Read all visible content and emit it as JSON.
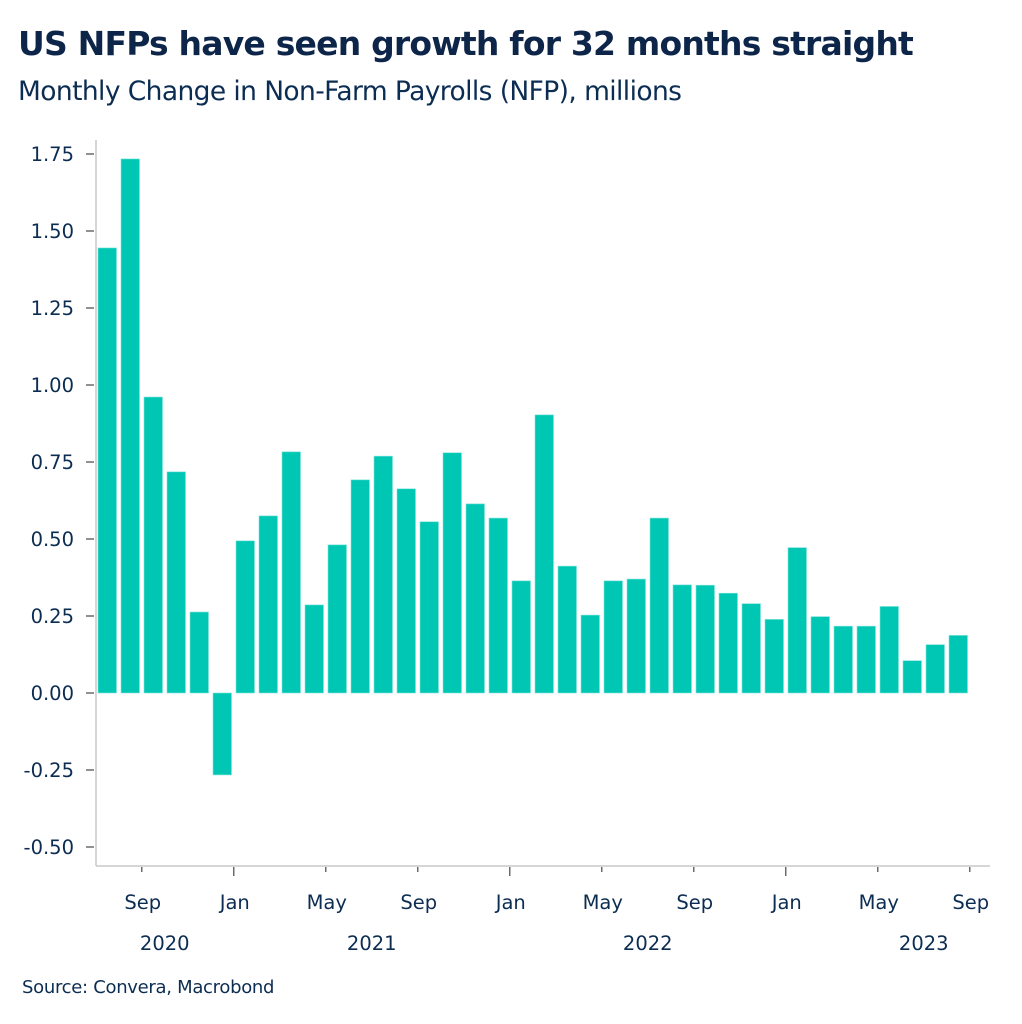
{
  "header": {
    "title": "US NFPs have seen growth for 32 months straight",
    "subtitle": "Monthly Change in Non-Farm Payrolls (NFP), millions"
  },
  "footer": {
    "source": "Source: Convera, Macrobond"
  },
  "colors": {
    "bar": "#00c7b4",
    "text": "#0c2d52",
    "axis": "#c8c8c8",
    "tick": "#6b6b6b"
  },
  "chart_data": {
    "type": "bar",
    "title": "US NFPs have seen growth for 32 months straight",
    "subtitle": "Monthly Change in Non-Farm Payrolls (NFP), millions",
    "xlabel": "",
    "ylabel": "",
    "ylim": [
      -0.55,
      1.8
    ],
    "yticks": [
      -0.5,
      -0.25,
      0.0,
      0.25,
      0.5,
      0.75,
      1.0,
      1.25,
      1.5,
      1.75
    ],
    "ytick_labels": [
      "-0.50",
      "-0.25",
      "0.00",
      "0.25",
      "0.50",
      "0.75",
      "1.00",
      "1.25",
      "1.50",
      "1.75"
    ],
    "grid": false,
    "legend": "none",
    "categories": [
      "Jul 2020",
      "Aug 2020",
      "Sep 2020",
      "Oct 2020",
      "Nov 2020",
      "Dec 2020",
      "Jan 2021",
      "Feb 2021",
      "Mar 2021",
      "Apr 2021",
      "May 2021",
      "Jun 2021",
      "Jul 2021",
      "Aug 2021",
      "Sep 2021",
      "Oct 2021",
      "Nov 2021",
      "Dec 2021",
      "Jan 2022",
      "Feb 2022",
      "Mar 2022",
      "Apr 2022",
      "May 2022",
      "Jun 2022",
      "Jul 2022",
      "Aug 2022",
      "Sep 2022",
      "Oct 2022",
      "Nov 2022",
      "Dec 2022",
      "Jan 2023",
      "Feb 2023",
      "Mar 2023",
      "Apr 2023",
      "May 2023",
      "Jun 2023",
      "Jul 2023",
      "Aug 2023"
    ],
    "values": [
      1.445,
      1.734,
      0.961,
      0.718,
      0.263,
      -0.266,
      0.494,
      0.575,
      0.783,
      0.286,
      0.481,
      0.692,
      0.769,
      0.663,
      0.556,
      0.78,
      0.614,
      0.568,
      0.364,
      0.903,
      0.412,
      0.253,
      0.364,
      0.37,
      0.568,
      0.351,
      0.35,
      0.324,
      0.29,
      0.239,
      0.472,
      0.248,
      0.217,
      0.217,
      0.281,
      0.105,
      0.157,
      0.187
    ],
    "x_month_ticks": [
      {
        "label": "Sep",
        "before_index": 2
      },
      {
        "label": "Jan",
        "before_index": 6
      },
      {
        "label": "May",
        "before_index": 10
      },
      {
        "label": "Sep",
        "before_index": 14
      },
      {
        "label": "Jan",
        "before_index": 18
      },
      {
        "label": "May",
        "before_index": 22
      },
      {
        "label": "Sep",
        "before_index": 26
      },
      {
        "label": "Jan",
        "before_index": 30
      },
      {
        "label": "May",
        "before_index": 34
      },
      {
        "label": "Sep",
        "before_index": 38
      }
    ],
    "x_year_labels": [
      {
        "label": "2020",
        "at_index": 3
      },
      {
        "label": "2021",
        "at_index": 12
      },
      {
        "label": "2022",
        "at_index": 24
      },
      {
        "label": "2023",
        "at_index": 36
      }
    ]
  }
}
